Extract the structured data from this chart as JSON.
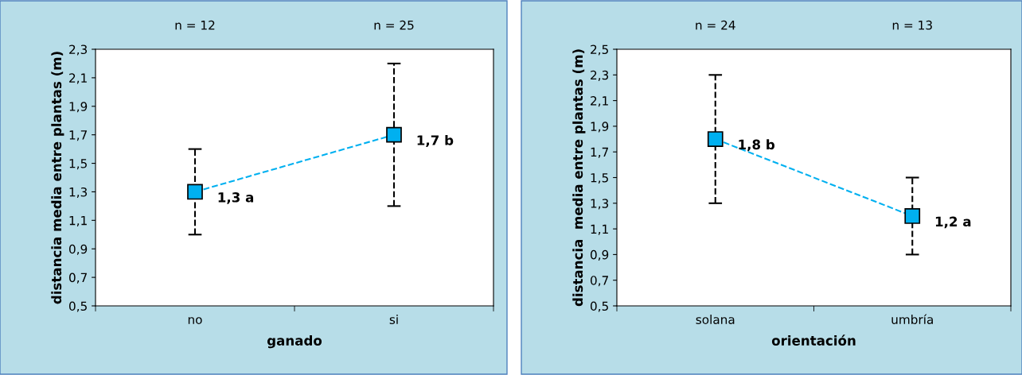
{
  "chart_data": [
    {
      "type": "line",
      "xlabel": "ganado",
      "ylabel": "distancia media entre plantas (m)",
      "categories": [
        "no",
        "si"
      ],
      "series": [
        {
          "color": "#00b0f0",
          "values": [
            1.3,
            1.7
          ],
          "errors": [
            0.3,
            0.5
          ],
          "value_labels": [
            "1,3 a",
            "1,7 b"
          ]
        }
      ],
      "ylim": [
        0.5,
        2.3
      ],
      "yticks": [
        {
          "value": 0.5,
          "label": "0,5"
        },
        {
          "value": 0.7,
          "label": "0,7"
        },
        {
          "value": 0.9,
          "label": "0,9"
        },
        {
          "value": 1.1,
          "label": "1,1"
        },
        {
          "value": 1.3,
          "label": "1,3"
        },
        {
          "value": 1.5,
          "label": "1,5"
        },
        {
          "value": 1.7,
          "label": "1,7"
        },
        {
          "value": 1.9,
          "label": "1,9"
        },
        {
          "value": 2.1,
          "label": "2,1"
        },
        {
          "value": 2.3,
          "label": "2,3"
        }
      ],
      "annotations": [
        "n = 12",
        "n = 25"
      ],
      "marker": "square",
      "line_style": "dashed",
      "grid": false
    },
    {
      "type": "line",
      "xlabel": "orientación",
      "ylabel": "distancia  media entre plantas (m)",
      "categories": [
        "solana",
        "umbría"
      ],
      "series": [
        {
          "color": "#00b0f0",
          "values": [
            1.8,
            1.2
          ],
          "errors": [
            0.5,
            0.3
          ],
          "value_labels": [
            "1,8 b",
            "1,2 a"
          ]
        }
      ],
      "ylim": [
        0.5,
        2.5
      ],
      "yticks": [
        {
          "value": 0.5,
          "label": "0,5"
        },
        {
          "value": 0.7,
          "label": "0,7"
        },
        {
          "value": 0.9,
          "label": "0,9"
        },
        {
          "value": 1.1,
          "label": "1,1"
        },
        {
          "value": 1.3,
          "label": "1,3"
        },
        {
          "value": 1.5,
          "label": "1,5"
        },
        {
          "value": 1.7,
          "label": "1,7"
        },
        {
          "value": 1.9,
          "label": "1,9"
        },
        {
          "value": 2.1,
          "label": "2,1"
        },
        {
          "value": 2.3,
          "label": "2,3"
        },
        {
          "value": 2.5,
          "label": "2,5"
        }
      ],
      "annotations": [
        "n = 24",
        "n = 13"
      ],
      "marker": "square",
      "line_style": "dashed",
      "grid": false
    }
  ]
}
